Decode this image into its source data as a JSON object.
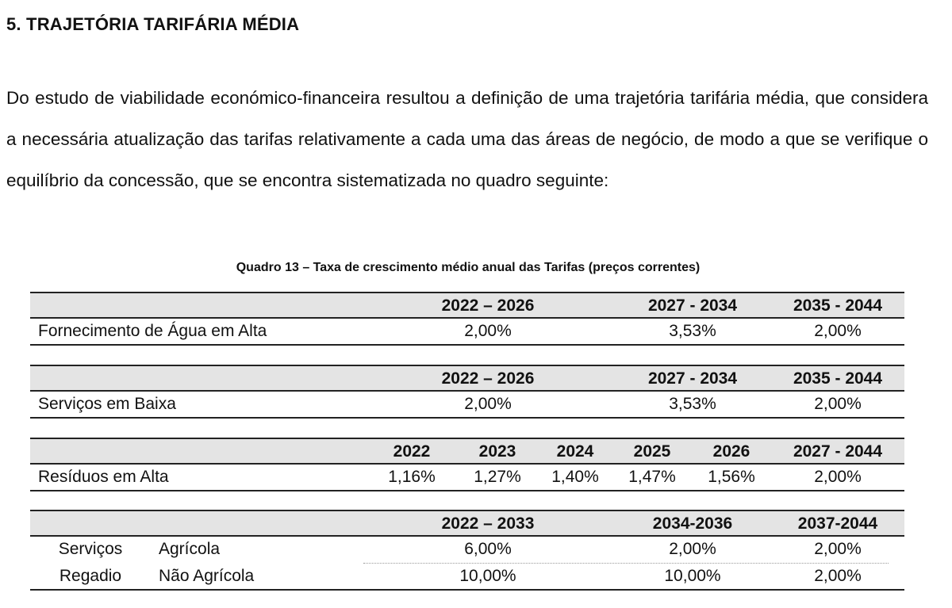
{
  "heading": "5.  TRAJETÓRIA TARIFÁRIA MÉDIA",
  "paragraph": "Do estudo de viabilidade económico-financeira resultou a definição de uma trajetória tarifária média, que considera a necessária atualização das tarifas relativamente a cada uma das áreas de negócio, de modo a que se verifique o equilíbrio da concessão, que se encontra sistematizada no quadro seguinte:",
  "caption": "Quadro 13 – Taxa de crescimento médio anual das Tarifas (preços correntes)",
  "tables": {
    "agua": {
      "headers": [
        "2022 – 2026",
        "2027 - 2034",
        "2035 - 2044"
      ],
      "row": {
        "label": "Fornecimento de Água em Alta",
        "values": [
          "2,00%",
          "3,53%",
          "2,00%"
        ]
      }
    },
    "baixa": {
      "headers": [
        "2022 – 2026",
        "2027 - 2034",
        "2035 - 2044"
      ],
      "row": {
        "label": "Serviços em Baixa",
        "values": [
          "2,00%",
          "3,53%",
          "2,00%"
        ]
      }
    },
    "residuos": {
      "headers": [
        "2022",
        "2023",
        "2024",
        "2025",
        "2026",
        "2027 - 2044"
      ],
      "row": {
        "label": "Resíduos em Alta",
        "values": [
          "1,16%",
          "1,27%",
          "1,40%",
          "1,47%",
          "1,56%",
          "2,00%"
        ]
      }
    },
    "regadio": {
      "headers": [
        "2022 – 2033",
        "2034-2036",
        "2037-2044"
      ],
      "group_label_1": "Serviços",
      "group_label_2": "Regadio",
      "rows": [
        {
          "label": "Agrícola",
          "values": [
            "6,00%",
            "2,00%",
            "2,00%"
          ]
        },
        {
          "label": "Não Agrícola",
          "values": [
            "10,00%",
            "10,00%",
            "2,00%"
          ]
        }
      ]
    }
  }
}
